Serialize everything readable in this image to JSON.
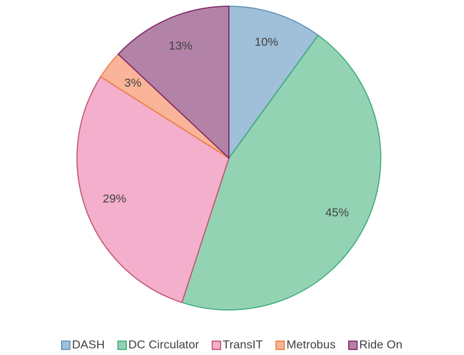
{
  "chart_data": {
    "type": "pie",
    "categories": [
      "DASH",
      "DC Circulator",
      "TransIT",
      "Metrobus",
      "Ride On"
    ],
    "values": [
      10,
      45,
      29,
      3,
      13
    ],
    "value_labels": [
      "10%",
      "45%",
      "29%",
      "3%",
      "13%"
    ],
    "colors": [
      "#9fc0d8",
      "#93d3b4",
      "#f3afcb",
      "#f9b499",
      "#b283a6"
    ],
    "edge_colors": [
      "#5b8db5",
      "#3aa876",
      "#c0506a",
      "#ee7a3a",
      "#7b2060"
    ],
    "legend": "bottom"
  }
}
